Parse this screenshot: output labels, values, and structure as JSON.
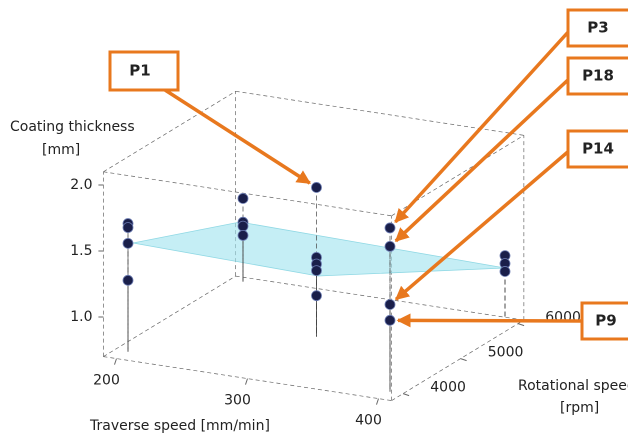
{
  "chart_data": {
    "type": "scatter3d",
    "x_label": "Traverse speed [mm/min]",
    "y_label": [
      "Coating thickness",
      "[mm]"
    ],
    "z_label": [
      "Rotational speed",
      "[rpm]"
    ],
    "x": [
      200,
      200,
      200,
      200,
      200,
      200,
      200,
      200,
      300,
      300,
      300,
      300,
      300,
      400,
      400,
      400,
      400,
      400,
      400,
      400
    ],
    "z": [
      4000,
      4000,
      4000,
      4000,
      6000,
      6000,
      6000,
      6000,
      5000,
      5000,
      5000,
      5000,
      5000,
      4000,
      4000,
      4000,
      4000,
      6000,
      6000,
      6000
    ],
    "values": [
      1.67,
      1.64,
      1.52,
      1.24,
      1.33,
      1.15,
      1.12,
      1.05,
      1.83,
      1.3,
      1.25,
      1.2,
      1.01,
      1.94,
      1.8,
      1.36,
      1.24,
      1.2,
      1.14,
      1.08
    ],
    "color": "#1a1f4a",
    "xlim": [
      190,
      410
    ],
    "xticks": [
      200,
      300,
      400
    ],
    "zlim": [
      3800,
      6100
    ],
    "zticks": [
      4000,
      5000,
      6000
    ],
    "ylim": [
      0.7,
      2.1
    ],
    "yticks": [
      {
        "value": 1.0,
        "label": "1.0"
      },
      1.5,
      {
        "value": 2.0,
        "label": "2.0"
      }
    ],
    "annotations": [
      "P1",
      "P3",
      "P18",
      "P14",
      "P9"
    ]
  }
}
